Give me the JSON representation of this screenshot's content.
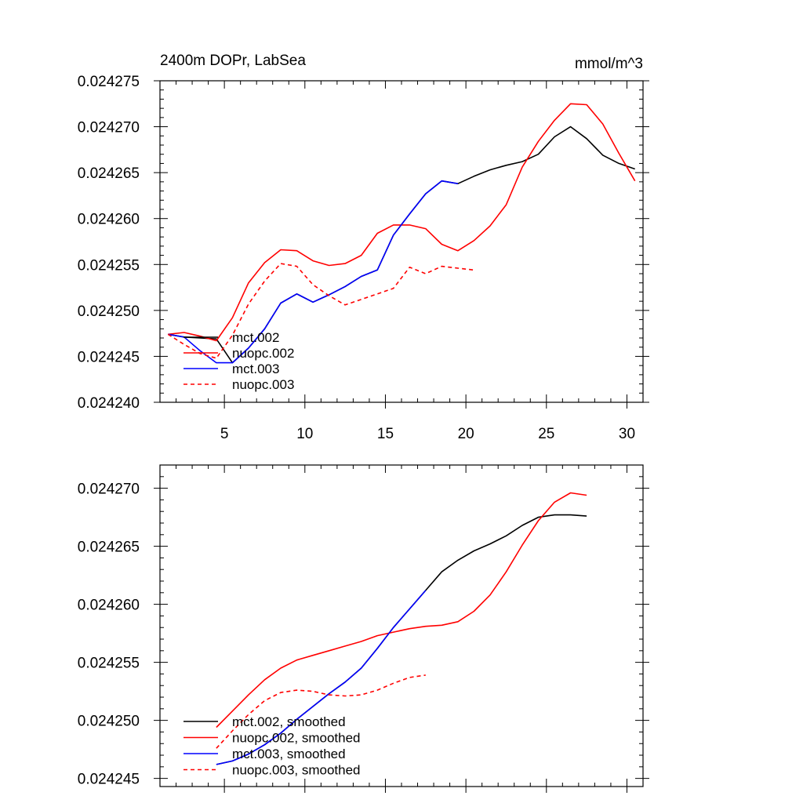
{
  "chart_data": [
    {
      "type": "line",
      "title": "2400m DOPr, LabSea",
      "units": "mmol/m^3",
      "xlabel": "",
      "ylabel": "",
      "xlim": [
        1,
        31
      ],
      "ylim": [
        0.02424,
        0.024275
      ],
      "xticks": [
        5,
        10,
        15,
        20,
        25,
        30
      ],
      "xtick_labels": [
        "5",
        "10",
        "15",
        "20",
        "25",
        "30"
      ],
      "yticks": [
        0.02424,
        0.024245,
        0.02425,
        0.024255,
        0.02426,
        0.024265,
        0.02427,
        0.024275
      ],
      "ytick_labels": [
        "0.024240",
        "0.024245",
        "0.024250",
        "0.024255",
        "0.024260",
        "0.024265",
        "0.024270",
        "0.024275"
      ],
      "legend_position": "lower-left",
      "series": [
        {
          "name": "mct.002",
          "color": "#000000",
          "dash": "solid",
          "x": [
            1.5,
            2.5,
            3.5,
            4.5,
            5.5,
            6.5,
            7.5,
            8.5,
            9.5,
            10.5,
            11.5,
            12.5,
            13.5,
            14.5,
            15.5,
            16.5,
            17.5,
            18.5,
            19.5,
            20.5,
            21.5,
            22.5,
            23.5,
            24.5,
            25.5,
            26.5,
            27.5,
            28.5,
            29.5,
            30.5
          ],
          "values": [
            0.0242474,
            0.0242471,
            0.024247,
            0.0242469,
            0.0242443,
            0.0242459,
            0.024248,
            0.0242508,
            0.0242518,
            0.0242509,
            0.0242517,
            0.0242526,
            0.0242537,
            0.0242544,
            0.0242582,
            0.0242605,
            0.0242627,
            0.0242641,
            0.0242638,
            0.0242646,
            0.0242653,
            0.0242658,
            0.0242662,
            0.024267,
            0.0242689,
            0.02427,
            0.0242687,
            0.0242669,
            0.024266,
            0.0242654
          ]
        },
        {
          "name": "nuopc.002",
          "color": "#ff0000",
          "dash": "solid",
          "x": [
            1.5,
            2.5,
            3.5,
            4.5,
            5.5,
            6.5,
            7.5,
            8.5,
            9.5,
            10.5,
            11.5,
            12.5,
            13.5,
            14.5,
            15.5,
            16.5,
            17.5,
            18.5,
            19.5,
            20.5,
            21.5,
            22.5,
            23.5,
            24.5,
            25.5,
            26.5,
            27.5,
            28.5,
            29.5,
            30.5
          ],
          "values": [
            0.0242474,
            0.0242476,
            0.0242472,
            0.0242467,
            0.0242492,
            0.024253,
            0.0242552,
            0.0242566,
            0.0242565,
            0.0242554,
            0.0242549,
            0.0242551,
            0.024256,
            0.0242584,
            0.0242593,
            0.0242593,
            0.0242589,
            0.0242572,
            0.0242565,
            0.0242576,
            0.0242592,
            0.0242615,
            0.0242656,
            0.0242684,
            0.0242707,
            0.0242725,
            0.0242724,
            0.0242703,
            0.0242671,
            0.0242641
          ]
        },
        {
          "name": "mct.003",
          "color": "#0000ff",
          "dash": "solid",
          "x": [
            1.5,
            2.5,
            3.5,
            4.5,
            5.5,
            6.5,
            7.5,
            8.5,
            9.5,
            10.5,
            11.5,
            12.5,
            13.5,
            14.5,
            15.5,
            16.5,
            17.5,
            18.5,
            19.5
          ],
          "values": [
            0.0242474,
            0.0242471,
            0.0242456,
            0.0242443,
            0.0242443,
            0.0242459,
            0.024248,
            0.0242508,
            0.0242518,
            0.0242509,
            0.0242517,
            0.0242526,
            0.0242537,
            0.0242544,
            0.0242582,
            0.0242605,
            0.0242627,
            0.0242641,
            0.0242638
          ]
        },
        {
          "name": "nuopc.003",
          "color": "#ff0000",
          "dash": "dashed",
          "x": [
            1.5,
            2.5,
            3.5,
            4.5,
            5.5,
            6.5,
            7.5,
            8.5,
            9.5,
            10.5,
            11.5,
            12.5,
            13.5,
            14.5,
            15.5,
            16.5,
            17.5,
            18.5,
            19.5,
            20.5
          ],
          "values": [
            0.0242474,
            0.0242463,
            0.0242453,
            0.0242448,
            0.0242473,
            0.0242507,
            0.0242532,
            0.0242551,
            0.0242548,
            0.0242528,
            0.0242516,
            0.0242506,
            0.0242512,
            0.0242518,
            0.0242524,
            0.0242547,
            0.024254,
            0.0242548,
            0.0242546,
            0.0242544
          ]
        }
      ]
    },
    {
      "type": "line",
      "title": "",
      "units": "",
      "xlabel": "",
      "ylabel": "",
      "xlim": [
        1,
        31
      ],
      "ylim": [
        0.0242443,
        0.024272
      ],
      "xticks": [
        5,
        10,
        15,
        20,
        25,
        30
      ],
      "xtick_labels": [],
      "yticks": [
        0.024245,
        0.02425,
        0.024255,
        0.02426,
        0.024265,
        0.02427
      ],
      "ytick_labels": [
        "0.024245",
        "0.024250",
        "0.024255",
        "0.024260",
        "0.024265",
        "0.024270"
      ],
      "legend_position": "lower-left",
      "series": [
        {
          "name": "mct.002, smoothed",
          "color": "#000000",
          "dash": "solid",
          "x": [
            4.5,
            5.5,
            6.5,
            7.5,
            8.5,
            9.5,
            10.5,
            11.5,
            12.5,
            13.5,
            14.5,
            15.5,
            16.5,
            17.5,
            18.5,
            19.5,
            20.5,
            21.5,
            22.5,
            23.5,
            24.5,
            25.5,
            26.5,
            27.5
          ],
          "values": [
            0.0242462,
            0.0242465,
            0.0242471,
            0.0242479,
            0.0242489,
            0.0242501,
            0.0242512,
            0.0242523,
            0.0242533,
            0.0242545,
            0.0242562,
            0.024258,
            0.0242596,
            0.0242612,
            0.0242628,
            0.0242638,
            0.0242646,
            0.0242652,
            0.0242659,
            0.0242668,
            0.0242675,
            0.0242677,
            0.0242677,
            0.0242676
          ]
        },
        {
          "name": "nuopc.002, smoothed",
          "color": "#ff0000",
          "dash": "solid",
          "x": [
            4.5,
            5.5,
            6.5,
            7.5,
            8.5,
            9.5,
            10.5,
            11.5,
            12.5,
            13.5,
            14.5,
            15.5,
            16.5,
            17.5,
            18.5,
            19.5,
            20.5,
            21.5,
            22.5,
            23.5,
            24.5,
            25.5,
            26.5,
            27.5
          ],
          "values": [
            0.0242494,
            0.0242508,
            0.0242522,
            0.0242535,
            0.0242545,
            0.0242552,
            0.0242556,
            0.024256,
            0.0242564,
            0.0242568,
            0.0242573,
            0.0242576,
            0.0242579,
            0.0242581,
            0.0242582,
            0.0242585,
            0.0242594,
            0.0242608,
            0.0242628,
            0.0242651,
            0.0242672,
            0.0242688,
            0.0242696,
            0.0242694
          ]
        },
        {
          "name": "mct.003, smoothed",
          "color": "#0000ff",
          "dash": "solid",
          "x": [
            4.5,
            5.5,
            6.5,
            7.5,
            8.5,
            9.5,
            10.5,
            11.5,
            12.5,
            13.5,
            14.5,
            15.5,
            16.5,
            17.5
          ],
          "values": [
            0.0242462,
            0.0242465,
            0.0242471,
            0.0242479,
            0.0242489,
            0.0242501,
            0.0242512,
            0.0242523,
            0.0242533,
            0.0242545,
            0.0242562,
            0.024258,
            0.0242596,
            0.0242612
          ]
        },
        {
          "name": "nuopc.003, smoothed",
          "color": "#ff0000",
          "dash": "dashed",
          "x": [
            4.5,
            5.5,
            6.5,
            7.5,
            8.5,
            9.5,
            10.5,
            11.5,
            12.5,
            13.5,
            14.5,
            15.5,
            16.5,
            17.5
          ],
          "values": [
            0.0242476,
            0.0242491,
            0.0242505,
            0.0242517,
            0.0242524,
            0.0242526,
            0.0242525,
            0.0242522,
            0.0242521,
            0.0242522,
            0.0242526,
            0.0242532,
            0.0242537,
            0.0242539
          ]
        }
      ]
    }
  ]
}
